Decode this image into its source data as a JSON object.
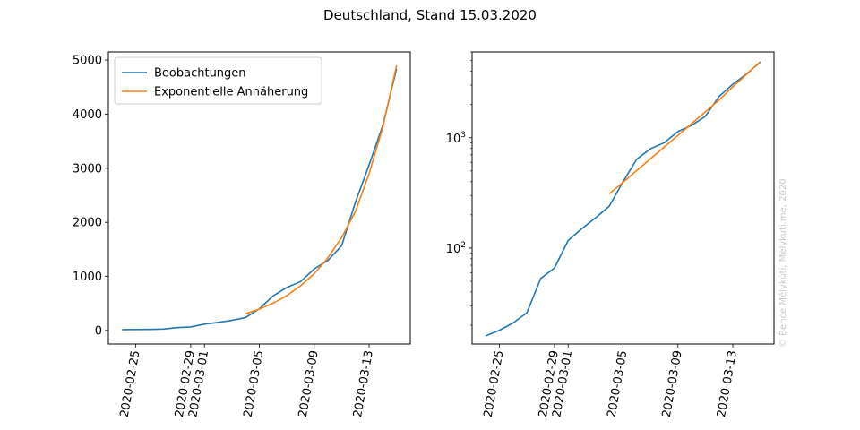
{
  "figure": {
    "title": "Deutschland, Stand 15.03.2020",
    "copyright": "© Bence Mélykúti, Melykuti.me, 2020"
  },
  "chart_data": [
    {
      "type": "line",
      "y_scale": "linear",
      "x_type": "date",
      "xlim": [
        "2020-02-23",
        "2020-03-16"
      ],
      "ylim": [
        -250,
        5150
      ],
      "x_ticks": [
        "2020-02-25",
        "2020-02-29",
        "2020-03-01",
        "2020-03-05",
        "2020-03-09",
        "2020-03-13"
      ],
      "y_ticks": [
        0,
        1000,
        2000,
        3000,
        4000,
        5000
      ],
      "y_tick_labels": [
        "0",
        "1000",
        "2000",
        "3000",
        "4000",
        "5000"
      ],
      "legend_position": "upper-left",
      "series": [
        {
          "name": "Beobachtungen",
          "color": "#1f77b4",
          "x": [
            "2020-02-24",
            "2020-02-25",
            "2020-02-26",
            "2020-02-27",
            "2020-02-28",
            "2020-02-29",
            "2020-03-01",
            "2020-03-02",
            "2020-03-03",
            "2020-03-04",
            "2020-03-05",
            "2020-03-06",
            "2020-03-07",
            "2020-03-08",
            "2020-03-09",
            "2020-03-10",
            "2020-03-11",
            "2020-03-12",
            "2020-03-13",
            "2020-03-14",
            "2020-03-15"
          ],
          "y": [
            16,
            18,
            21,
            26,
            53,
            66,
            117,
            150,
            188,
            240,
            400,
            639,
            795,
            902,
            1139,
            1296,
            1567,
            2369,
            3062,
            3795,
            4838
          ]
        },
        {
          "name": "Exponentielle Annäherung",
          "color": "#ff7f0e",
          "x": [
            "2020-03-04",
            "2020-03-05",
            "2020-03-06",
            "2020-03-07",
            "2020-03-08",
            "2020-03-09",
            "2020-03-10",
            "2020-03-11",
            "2020-03-12",
            "2020-03-13",
            "2020-03-14",
            "2020-03-15"
          ],
          "y": [
            310,
            395,
            505,
            645,
            825,
            1050,
            1345,
            1720,
            2200,
            2900,
            3760,
            4900
          ]
        }
      ]
    },
    {
      "type": "line",
      "y_scale": "log",
      "x_type": "date",
      "xlim": [
        "2020-02-23",
        "2020-03-16"
      ],
      "ylim": [
        13.5,
        6000
      ],
      "x_ticks": [
        "2020-02-25",
        "2020-02-29",
        "2020-03-01",
        "2020-03-05",
        "2020-03-09",
        "2020-03-13"
      ],
      "y_ticks": [
        100,
        1000
      ],
      "y_tick_labels": [
        {
          "base": "10",
          "exp": "2"
        },
        {
          "base": "10",
          "exp": "3"
        }
      ],
      "series": [
        {
          "color": "#1f77b4",
          "x": [
            "2020-02-24",
            "2020-02-25",
            "2020-02-26",
            "2020-02-27",
            "2020-02-28",
            "2020-02-29",
            "2020-03-01",
            "2020-03-02",
            "2020-03-03",
            "2020-03-04",
            "2020-03-05",
            "2020-03-06",
            "2020-03-07",
            "2020-03-08",
            "2020-03-09",
            "2020-03-10",
            "2020-03-11",
            "2020-03-12",
            "2020-03-13",
            "2020-03-14",
            "2020-03-15"
          ],
          "y": [
            16,
            18,
            21,
            26,
            53,
            66,
            117,
            150,
            188,
            240,
            400,
            639,
            795,
            902,
            1139,
            1296,
            1567,
            2369,
            3062,
            3795,
            4838
          ]
        },
        {
          "color": "#ff7f0e",
          "x": [
            "2020-03-04",
            "2020-03-05",
            "2020-03-06",
            "2020-03-07",
            "2020-03-08",
            "2020-03-09",
            "2020-03-10",
            "2020-03-11",
            "2020-03-12",
            "2020-03-13",
            "2020-03-14",
            "2020-03-15"
          ],
          "y": [
            310,
            395,
            505,
            645,
            825,
            1050,
            1345,
            1720,
            2200,
            2900,
            3760,
            4900
          ]
        }
      ]
    }
  ]
}
